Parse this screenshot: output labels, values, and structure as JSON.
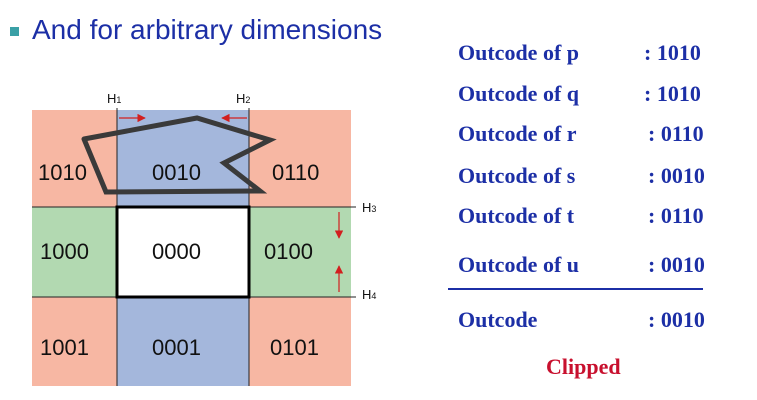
{
  "slide": {
    "title": "And for arbitrary dimensions",
    "accent_color": "#1c2fa6",
    "bullet_color": "#3aa0a6"
  },
  "region_colors": {
    "corner": "#f7b7a3",
    "vertical_band": "#a4b7dc",
    "horizontal_band": "#b2d9b1",
    "center": "#ffffff"
  },
  "grid": {
    "cells": [
      [
        "1010",
        "0010",
        "0110"
      ],
      [
        "1000",
        "0000",
        "0100"
      ],
      [
        "1001",
        "0001",
        "0101"
      ]
    ]
  },
  "boundaries": [
    {
      "name": "H",
      "index": "1"
    },
    {
      "name": "H",
      "index": "2"
    },
    {
      "name": "H",
      "index": "3"
    },
    {
      "name": "H",
      "index": "4"
    }
  ],
  "outcodes": [
    {
      "label": "Outcode of p",
      "value": ": 1010"
    },
    {
      "label": "Outcode of q",
      "value": ": 1010"
    },
    {
      "label": "Outcode of r",
      "value": ": 0110"
    },
    {
      "label": "Outcode of s",
      "value": ": 0010"
    },
    {
      "label": "Outcode of t",
      "value": ": 0110"
    },
    {
      "label": "Outcode of u",
      "value": ": 0010"
    }
  ],
  "result": {
    "label": "Outcode",
    "value": ": 0010"
  },
  "verdict": {
    "text": "Clipped",
    "color": "#c8102e"
  }
}
